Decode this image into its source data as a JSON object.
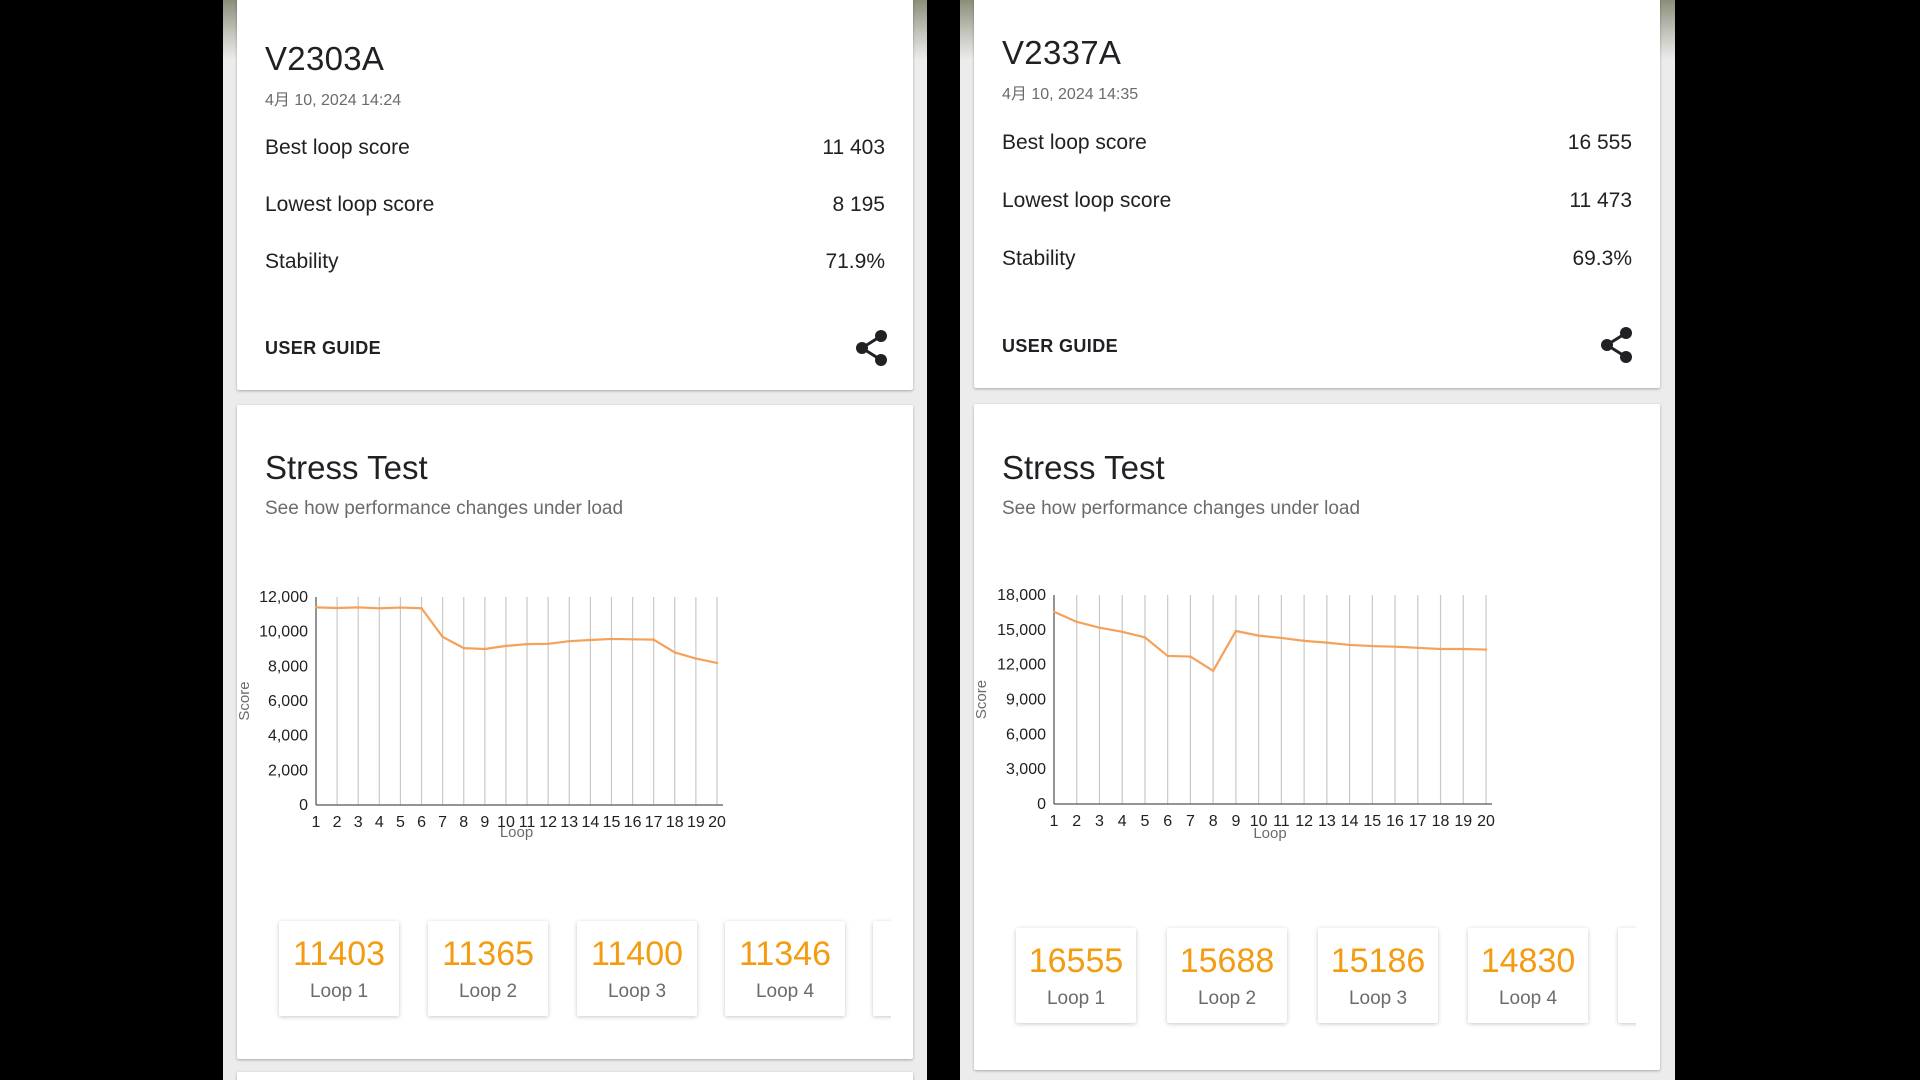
{
  "panels": [
    {
      "device": "V2303A",
      "datetime": "4月 10, 2024 14:24",
      "metrics": [
        {
          "label": "Best loop score",
          "value": "11 403"
        },
        {
          "label": "Lowest loop score",
          "value": "8 195"
        },
        {
          "label": "Stability",
          "value": "71.9%"
        }
      ],
      "user_guide": "USER GUIDE",
      "share_icon": "share-icon",
      "stress_title": "Stress Test",
      "stress_subtitle": "See how performance changes under load",
      "loops": [
        {
          "score": "11403",
          "label": "Loop 1"
        },
        {
          "score": "11365",
          "label": "Loop 2"
        },
        {
          "score": "11400",
          "label": "Loop 3"
        },
        {
          "score": "11346",
          "label": "Loop 4"
        }
      ]
    },
    {
      "device": "V2337A",
      "datetime": "4月 10, 2024 14:35",
      "metrics": [
        {
          "label": "Best loop score",
          "value": "16 555"
        },
        {
          "label": "Lowest loop score",
          "value": "11 473"
        },
        {
          "label": "Stability",
          "value": "69.3%"
        }
      ],
      "user_guide": "USER GUIDE",
      "share_icon": "share-icon",
      "stress_title": "Stress Test",
      "stress_subtitle": "See how performance changes under load",
      "loops": [
        {
          "score": "16555",
          "label": "Loop 1"
        },
        {
          "score": "15688",
          "label": "Loop 2"
        },
        {
          "score": "15186",
          "label": "Loop 3"
        },
        {
          "score": "14830",
          "label": "Loop 4"
        }
      ]
    }
  ],
  "colors": {
    "line": "#f5a15a",
    "score": "#f39c12",
    "grid": "#c8c8c8"
  },
  "chart_data": [
    {
      "type": "line",
      "xlabel": "Loop",
      "ylabel": "Score",
      "x": [
        1,
        2,
        3,
        4,
        5,
        6,
        7,
        8,
        9,
        10,
        11,
        12,
        13,
        14,
        15,
        16,
        17,
        18,
        19,
        20
      ],
      "yticks": [
        0,
        2000,
        4000,
        6000,
        8000,
        10000,
        12000
      ],
      "ytick_labels": [
        "0",
        "2,000",
        "4,000",
        "6,000",
        "8,000",
        "10,000",
        "12,000"
      ],
      "ylim": [
        0,
        12000
      ],
      "series": [
        {
          "values": [
            11403,
            11365,
            11400,
            11346,
            11390,
            11350,
            9700,
            9050,
            9000,
            9180,
            9280,
            9300,
            9450,
            9520,
            9580,
            9560,
            9540,
            8800,
            8450,
            8195
          ]
        }
      ]
    },
    {
      "type": "line",
      "xlabel": "Loop",
      "ylabel": "Score",
      "x": [
        1,
        2,
        3,
        4,
        5,
        6,
        7,
        8,
        9,
        10,
        11,
        12,
        13,
        14,
        15,
        16,
        17,
        18,
        19,
        20
      ],
      "yticks": [
        0,
        3000,
        6000,
        9000,
        12000,
        15000,
        18000
      ],
      "ytick_labels": [
        "0",
        "3,000",
        "6,000",
        "9,000",
        "12,000",
        "15,000",
        "18,000"
      ],
      "ylim": [
        0,
        18000
      ],
      "series": [
        {
          "values": [
            16555,
            15688,
            15186,
            14830,
            14350,
            12750,
            12700,
            11473,
            14900,
            14500,
            14300,
            14050,
            13900,
            13700,
            13600,
            13550,
            13450,
            13350,
            13350,
            13300
          ]
        }
      ]
    }
  ]
}
